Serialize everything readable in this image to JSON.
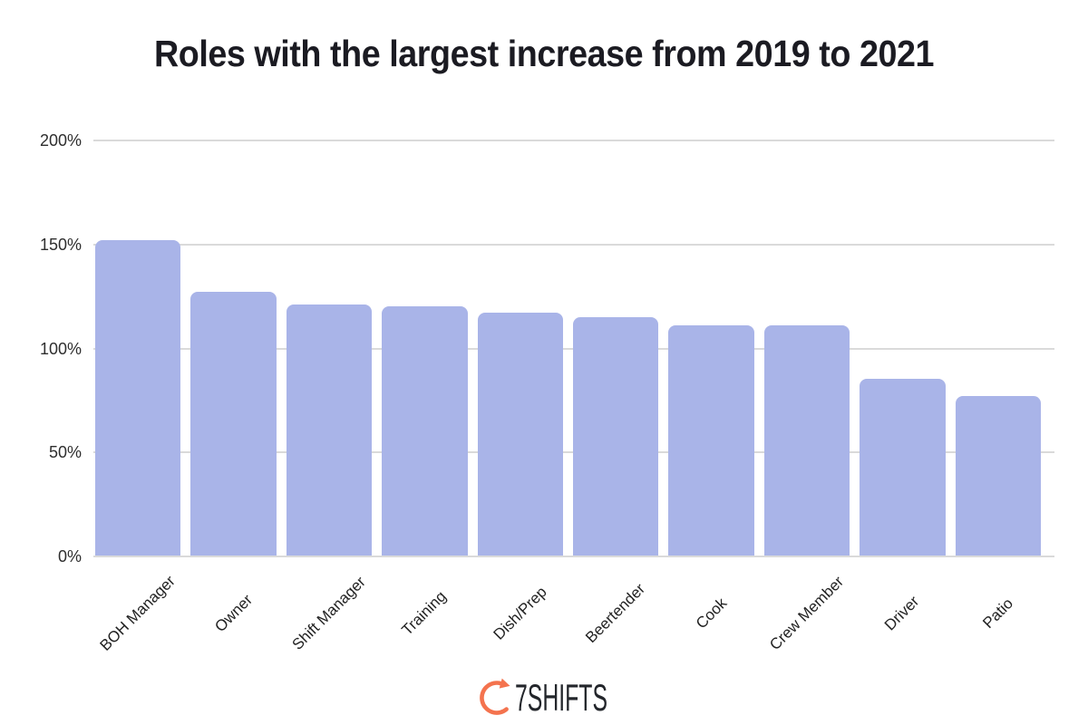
{
  "title": "Roles with the largest increase from 2019 to 2021",
  "chart_data": {
    "type": "bar",
    "title": "Roles with the largest increase from 2019 to 2021",
    "categories": [
      "BOH Manager",
      "Owner",
      "Shift Manager",
      "Training",
      "Dish/Prep",
      "Beertender",
      "Cook",
      "Crew Member",
      "Driver",
      "Patio"
    ],
    "values": [
      152,
      127,
      121,
      120,
      117,
      115,
      111,
      111,
      85,
      77
    ],
    "value_unit": "%",
    "xlabel": "",
    "ylabel": "",
    "ylim": [
      0,
      200
    ],
    "ytick_labels": [
      "200%",
      "150%",
      "100%",
      "50%",
      "0%"
    ],
    "ytick_values": [
      200,
      150,
      100,
      50,
      0
    ],
    "grid": true,
    "legend": false,
    "bar_color": "#a9b4e8",
    "xtick_rotation_deg": 45
  },
  "footer": {
    "logo_text": "7SHIFTS",
    "logo_icon": "stopwatch-arrow-icon"
  },
  "colors": {
    "background": "#ffffff",
    "bar": "#a9b4e8",
    "gridline": "#dadada",
    "title_text": "#1b1b22",
    "axis_text": "#2e2e2e",
    "logo_coral": "#f4734e",
    "logo_text": "#23262b"
  }
}
